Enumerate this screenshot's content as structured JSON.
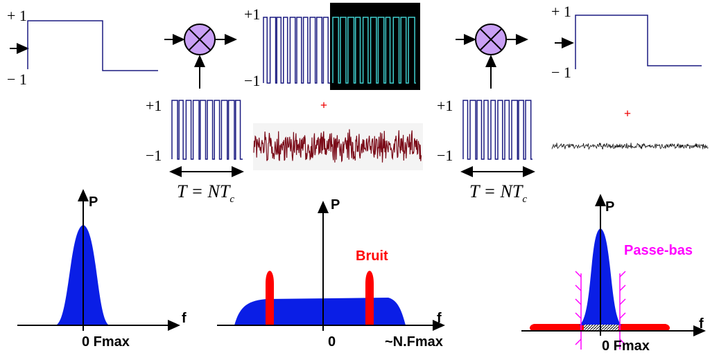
{
  "signal_in": {
    "high": "+ 1",
    "low": "− 1"
  },
  "multiplier_1_code": {
    "high": "+1",
    "low": "−1",
    "period": "T = NT",
    "period_sub": "c"
  },
  "spread_signal": {
    "high": "+1",
    "low": "−1"
  },
  "noise_add_1": "+",
  "multiplier_2_code": {
    "high": "+1",
    "low": "−1",
    "period": "T = NT",
    "period_sub": "c"
  },
  "signal_out": {
    "high": "+ 1",
    "low": "− 1"
  },
  "noise_add_2": "+",
  "spectrum_in": {
    "y_label": "P",
    "x_label": "f",
    "x_tick": "0 Fmax"
  },
  "spectrum_spread": {
    "y_label": "P",
    "x_label": "f",
    "origin": "0",
    "x_max": "~N.Fmax",
    "noise": "Bruit"
  },
  "spectrum_out": {
    "y_label": "P",
    "x_label": "f",
    "x_tick": "0 Fmax",
    "filter": "Passe-bas"
  }
}
